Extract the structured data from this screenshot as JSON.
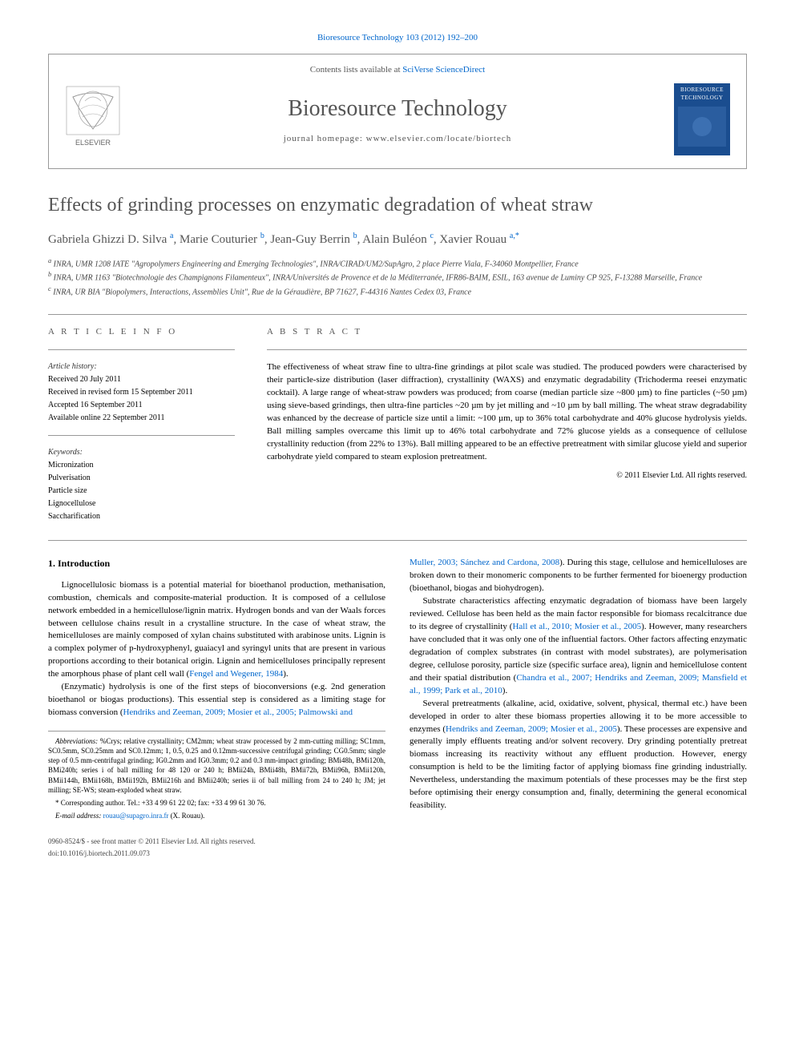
{
  "header": {
    "journal_ref": "Bioresource Technology 103 (2012) 192–200",
    "contents_prefix": "Contents lists available at ",
    "contents_link": "SciVerse ScienceDirect",
    "journal_name": "Bioresource Technology",
    "homepage_prefix": "journal homepage: ",
    "homepage_url": "www.elsevier.com/locate/biortech",
    "elsevier_label": "ELSEVIER",
    "cover_title": "BIORESOURCE TECHNOLOGY"
  },
  "article": {
    "title": "Effects of grinding processes on enzymatic degradation of wheat straw",
    "authors_html": "Gabriela Ghizzi D. Silva <sup>a</sup>, Marie Couturier <sup>b</sup>, Jean-Guy Berrin <sup>b</sup>, Alain Buléon <sup>c</sup>, Xavier Rouau <sup>a,*</sup>",
    "affiliations": {
      "a": "INRA, UMR 1208 IATE \"Agropolymers Engineering and Emerging Technologies\", INRA/CIRAD/UM2/SupAgro, 2 place Pierre Viala, F-34060 Montpellier, France",
      "b": "INRA, UMR 1163 \"Biotechnologie des Champignons Filamenteux\", INRA/Universités de Provence et de la Méditerranée, IFR86-BAIM, ESIL, 163 avenue de Luminy CP 925, F-13288 Marseille, France",
      "c": "INRA, UR BIA \"Biopolymers, Interactions, Assemblies Unit\", Rue de la Géraudière, BP 71627, F-44316 Nantes Cedex 03, France"
    }
  },
  "article_info": {
    "heading": "A R T I C L E   I N F O",
    "history_label": "Article history:",
    "received": "Received 20 July 2011",
    "revised": "Received in revised form 15 September 2011",
    "accepted": "Accepted 16 September 2011",
    "online": "Available online 22 September 2011",
    "keywords_label": "Keywords:",
    "keywords": [
      "Micronization",
      "Pulverisation",
      "Particle size",
      "Lignocellulose",
      "Saccharification"
    ]
  },
  "abstract": {
    "heading": "A B S T R A C T",
    "text": "The effectiveness of wheat straw fine to ultra-fine grindings at pilot scale was studied. The produced powders were characterised by their particle-size distribution (laser diffraction), crystallinity (WAXS) and enzymatic degradability (Trichoderma reesei enzymatic cocktail). A large range of wheat-straw powders was produced; from coarse (median particle size ~800 µm) to fine particles (~50 µm) using sieve-based grindings, then ultra-fine particles ~20 µm by jet milling and ~10 µm by ball milling. The wheat straw degradability was enhanced by the decrease of particle size until a limit: ~100 µm, up to 36% total carbohydrate and 40% glucose hydrolysis yields. Ball milling samples overcame this limit up to 46% total carbohydrate and 72% glucose yields as a consequence of cellulose crystallinity reduction (from 22% to 13%). Ball milling appeared to be an effective pretreatment with similar glucose yield and superior carbohydrate yield compared to steam explosion pretreatment.",
    "copyright": "© 2011 Elsevier Ltd. All rights reserved."
  },
  "body": {
    "section1_heading": "1. Introduction",
    "p1": "Lignocellulosic biomass is a potential material for bioethanol production, methanisation, combustion, chemicals and composite-material production. It is composed of a cellulose network embedded in a hemicellulose/lignin matrix. Hydrogen bonds and van der Waals forces between cellulose chains result in a crystalline structure. In the case of wheat straw, the hemicelluloses are mainly composed of xylan chains substituted with arabinose units. Lignin is a complex polymer of p-hydroxyphenyl, guaiacyl and syringyl units that are present in various proportions according to their botanical origin. Lignin and hemicelluloses principally represent the amorphous phase of plant cell wall (",
    "p1_ref": "Fengel and Wegener, 1984",
    "p1_end": ").",
    "p2": "(Enzymatic) hydrolysis is one of the first steps of bioconversions (e.g. 2nd generation bioethanol or biogas productions). This essential step is considered as a limiting stage for biomass conversion (",
    "p2_ref": "Hendriks and Zeeman, 2009; Mosier et al., 2005; Palmowski and",
    "p3_ref_cont": "Muller, 2003; Sánchez and Cardona, 2008",
    "p3": "). During this stage, cellulose and hemicelluloses are broken down to their monomeric components to be further fermented for bioenergy production (bioethanol, biogas and biohydrogen).",
    "p4": "Substrate characteristics affecting enzymatic degradation of biomass have been largely reviewed. Cellulose has been held as the main factor responsible for biomass recalcitrance due to its degree of crystallinity (",
    "p4_ref1": "Hall et al., 2010; Mosier et al., 2005",
    "p4_mid": "). However, many researchers have concluded that it was only one of the influential factors. Other factors affecting enzymatic degradation of complex substrates (in contrast with model substrates), are polymerisation degree, cellulose porosity, particle size (specific surface area), lignin and hemicellulose content and their spatial distribution (",
    "p4_ref2": "Chandra et al., 2007; Hendriks and Zeeman, 2009; Mansfield et al., 1999; Park et al., 2010",
    "p4_end": ").",
    "p5": "Several pretreatments (alkaline, acid, oxidative, solvent, physical, thermal etc.) have been developed in order to alter these biomass properties allowing it to be more accessible to enzymes (",
    "p5_ref": "Hendriks and Zeeman, 2009; Mosier et al., 2005",
    "p5_end": "). These processes are expensive and generally imply effluents treating and/or solvent recovery. Dry grinding potentially pretreat biomass increasing its reactivity without any effluent production. However, energy consumption is held to be the limiting factor of applying biomass fine grinding industrially. Nevertheless, understanding the maximum potentials of these processes may be the first step before optimising their energy consumption and, finally, determining the general economical feasibility."
  },
  "footnotes": {
    "abbrev_label": "Abbreviations:",
    "abbrev_text": " %Crys; relative crystallinity; CM2mm; wheat straw processed by 2 mm-cutting milling; SC1mm, SC0.5mm, SC0.25mm and SC0.12mm; 1, 0.5, 0.25 and 0.12mm-successive centrifugal grinding; CG0.5mm; single step of 0.5 mm-centrifugal grinding; IG0.2mm and IG0.3mm; 0.2 and 0.3 mm-impact grinding; BMi48h, BMi120h, BMi240h; series i of ball milling for 48 120 or 240 h; BMii24h, BMii48h, BMii72h, BMii96h, BMii120h, BMii144h, BMii168h, BMii192h, BMii216h and BMii240h; series ii of ball milling from 24 to 240 h; JM; jet milling; SE-WS; steam-exploded wheat straw.",
    "corr_label": "* Corresponding author. ",
    "corr_text": "Tel.: +33 4 99 61 22 02; fax: +33 4 99 61 30 76.",
    "email_label": "E-mail address: ",
    "email": "rouau@supagro.inra.fr",
    "email_name": " (X. Rouau)."
  },
  "footer": {
    "line1": "0960-8524/$ - see front matter © 2011 Elsevier Ltd. All rights reserved.",
    "line2": "doi:10.1016/j.biortech.2011.09.073"
  },
  "colors": {
    "link": "#0066cc",
    "heading_gray": "#555555",
    "border": "#999999",
    "cover_bg": "#1a4d8f"
  }
}
